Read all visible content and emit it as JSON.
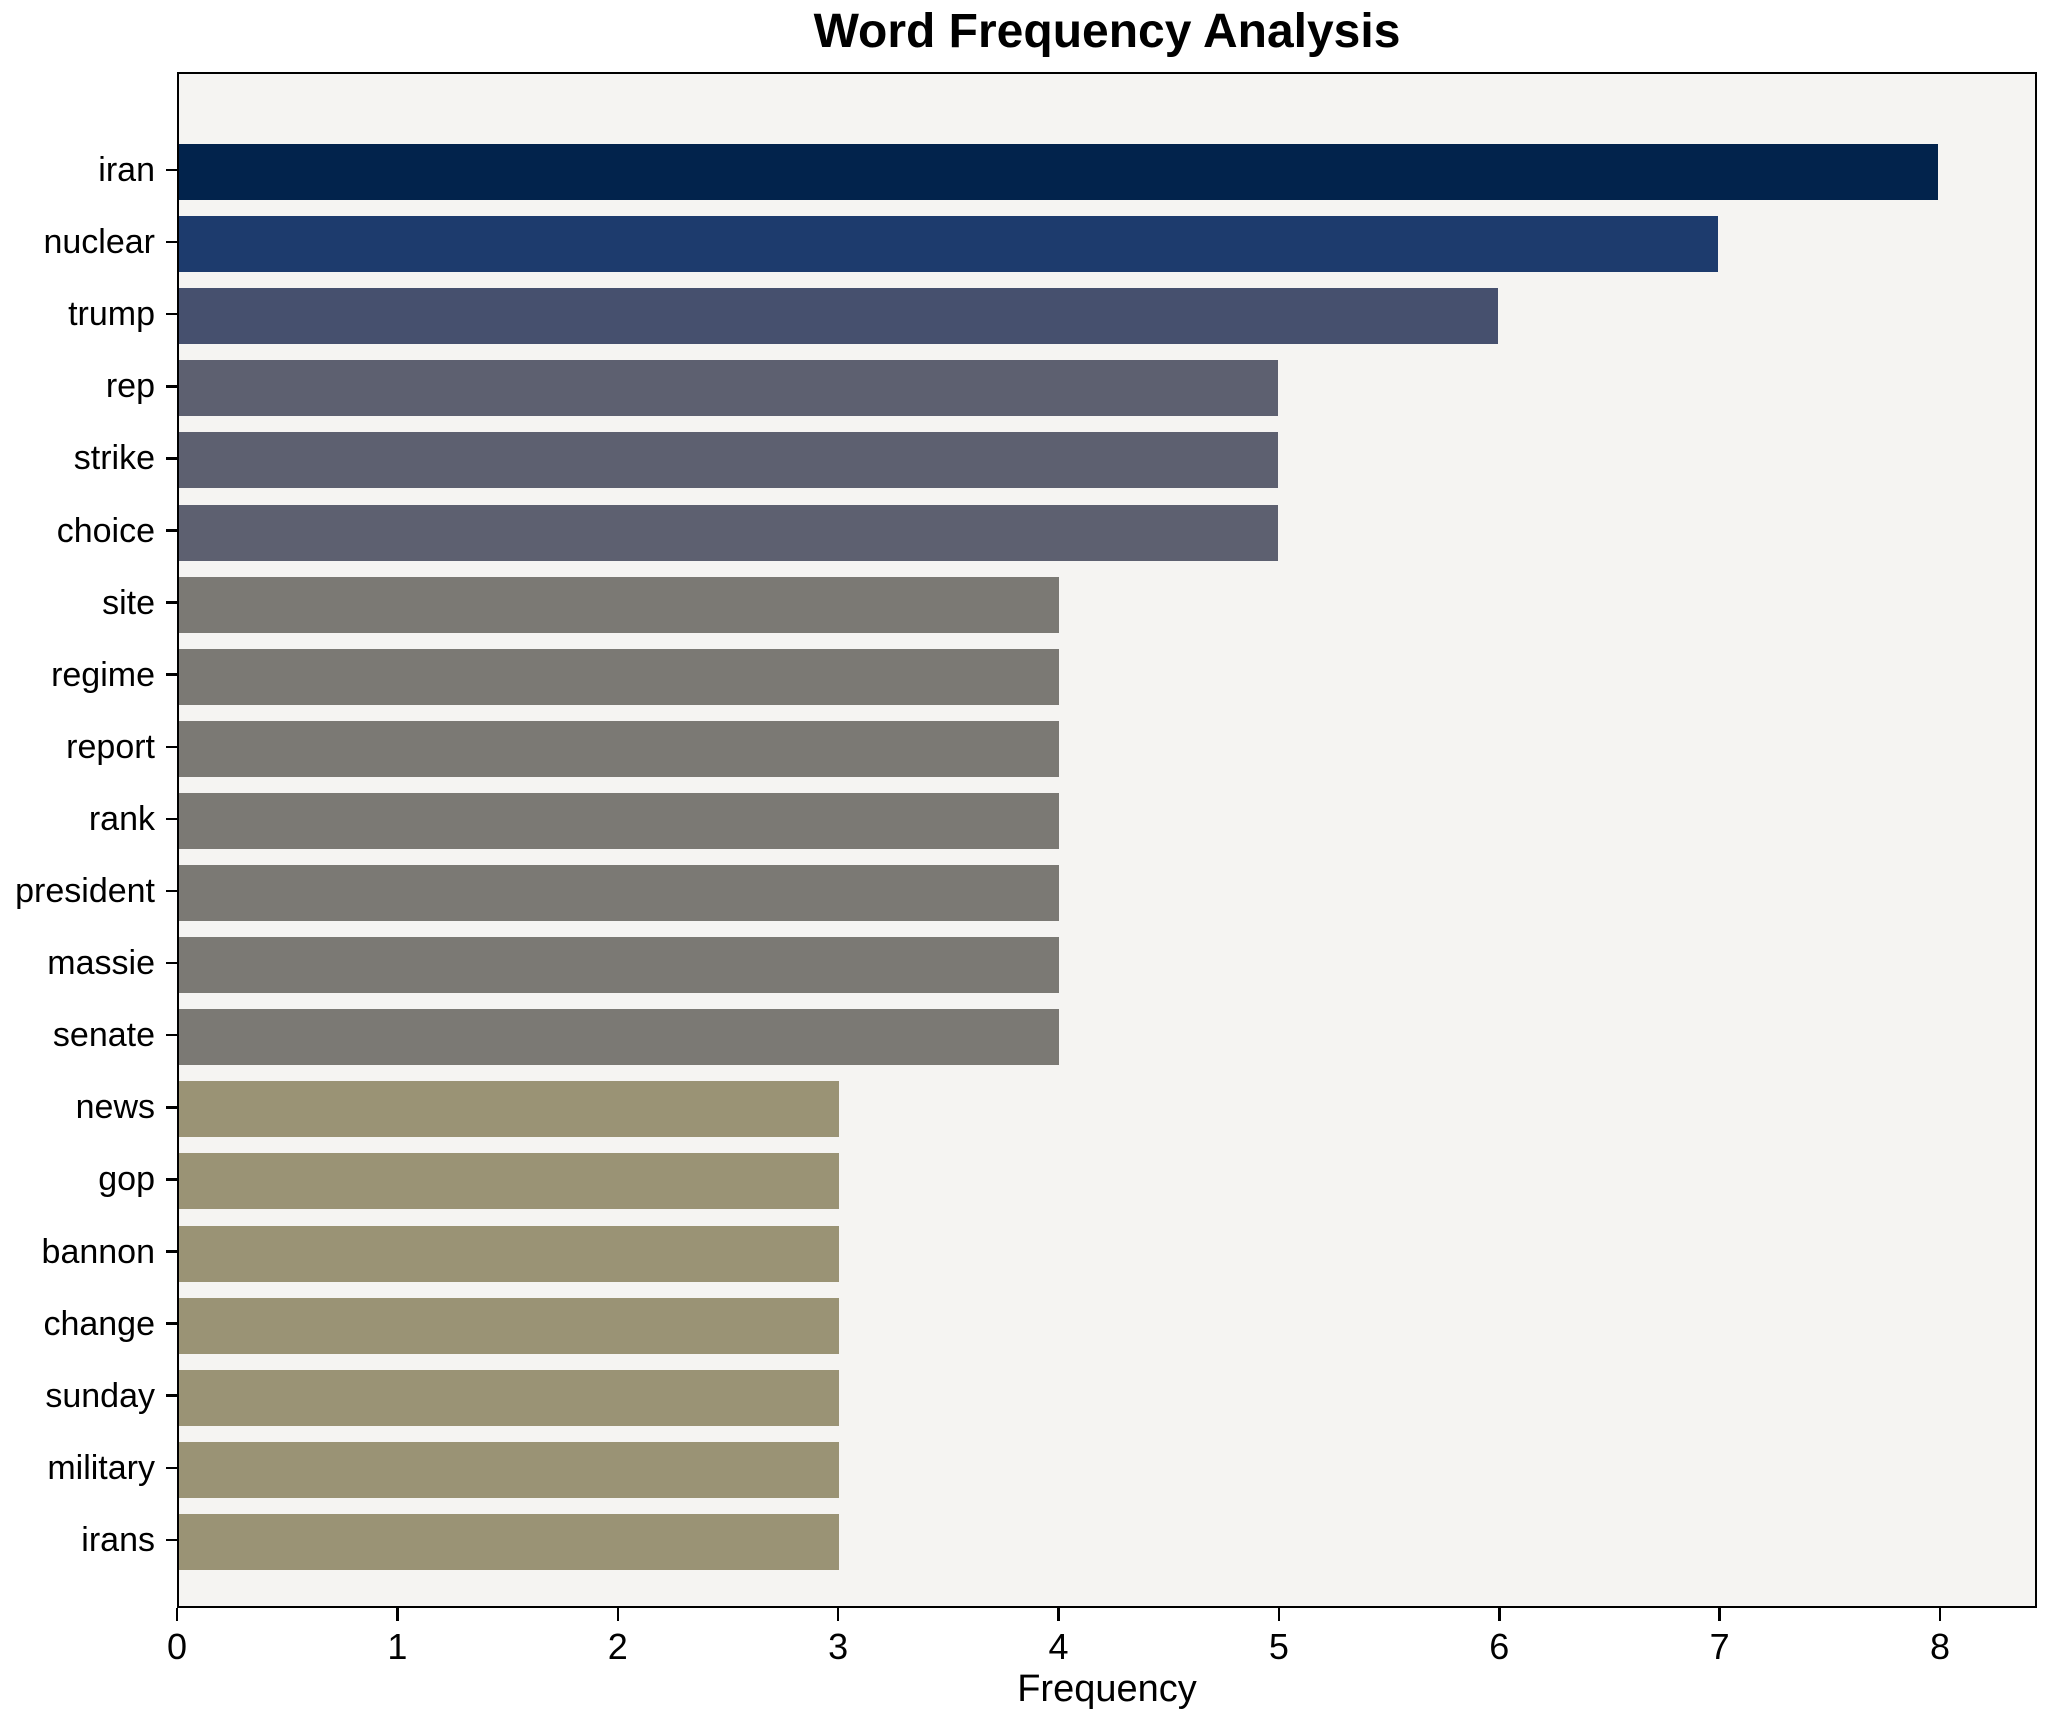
{
  "figure": {
    "title": "Word Frequency Analysis"
  },
  "chart_data": {
    "type": "bar",
    "orientation": "horizontal",
    "title": "Word Frequency Analysis",
    "xlabel": "Frequency",
    "ylabel": "",
    "categories": [
      "iran",
      "nuclear",
      "trump",
      "rep",
      "strike",
      "choice",
      "site",
      "regime",
      "report",
      "rank",
      "president",
      "massie",
      "senate",
      "news",
      "gop",
      "bannon",
      "change",
      "sunday",
      "military",
      "irans"
    ],
    "values": [
      8,
      7,
      6,
      5,
      5,
      5,
      4,
      4,
      4,
      4,
      4,
      4,
      4,
      3,
      3,
      3,
      3,
      3,
      3,
      3
    ],
    "bar_colors": [
      "#02234c",
      "#1d3b6d",
      "#46506e",
      "#5d6070",
      "#5d6070",
      "#5d6070",
      "#7b7974",
      "#7b7974",
      "#7b7974",
      "#7b7974",
      "#7b7974",
      "#7b7974",
      "#7b7974",
      "#9a9375",
      "#9a9375",
      "#9a9375",
      "#9a9375",
      "#9a9375",
      "#9a9375",
      "#9a9375"
    ],
    "xlim": [
      0,
      8.44
    ],
    "xticks": [
      "0",
      "1",
      "2",
      "3",
      "4",
      "5",
      "6",
      "7",
      "8"
    ],
    "grid": false,
    "legend": null,
    "plot_bg": "#f5f4f2",
    "figure_bg": "#ffffff",
    "spine_color": "#000000",
    "text_color": "#000000"
  }
}
